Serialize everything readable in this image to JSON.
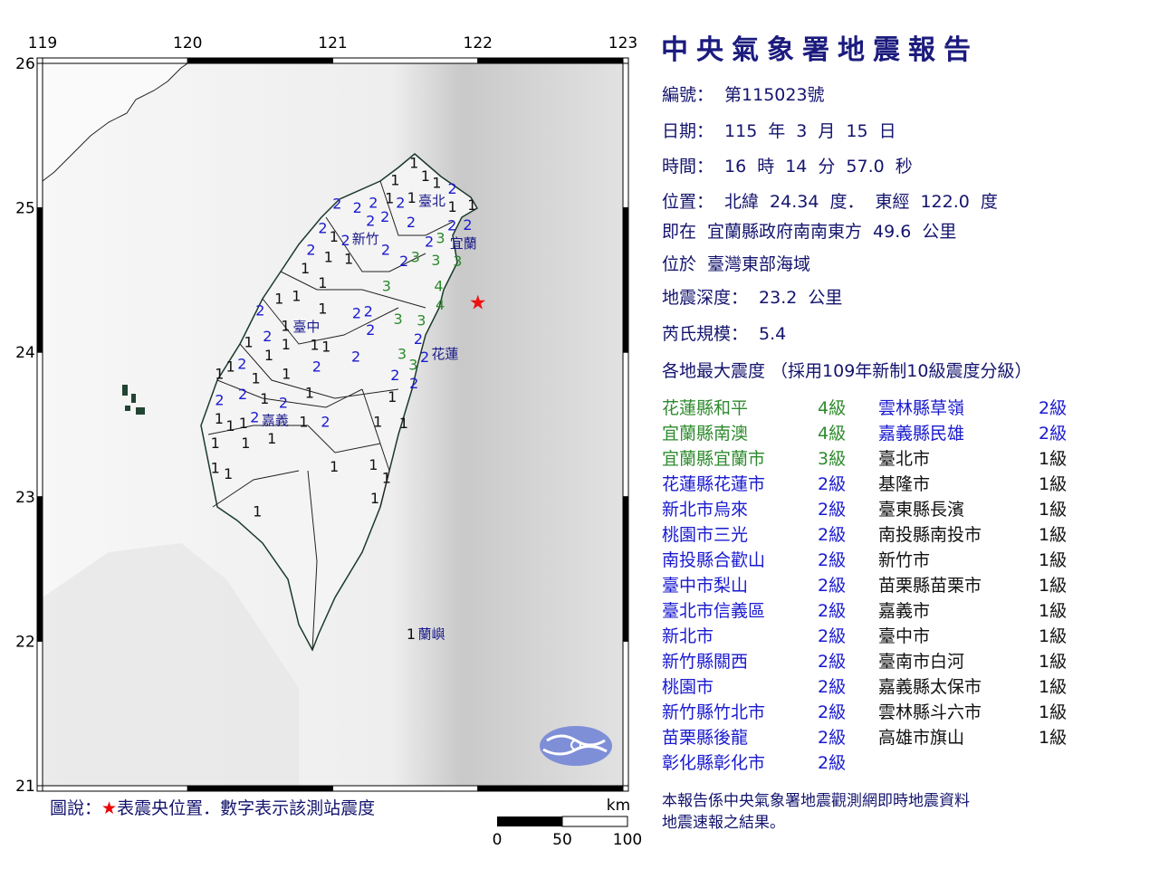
{
  "title": "中央氣象署地震報告",
  "map": {
    "lon_ticks": [
      "119",
      "120",
      "121",
      "122",
      "123"
    ],
    "lat_ticks": [
      "26",
      "25",
      "24",
      "23",
      "22",
      "21"
    ],
    "lon_range": [
      119,
      123
    ],
    "lat_range": [
      21,
      26
    ],
    "epicenter": {
      "lon": 122.0,
      "lat": 24.34,
      "color": "#ee1111",
      "icon": "star-icon"
    },
    "intensity_colors": {
      "1": "#111111",
      "2": "#1a1ad0",
      "3": "#2e8b2e",
      "4": "#2e8b2e"
    },
    "places": [
      {
        "name": "臺北",
        "lon": 121.69,
        "lat": 25.07
      },
      {
        "name": "新竹",
        "lon": 121.15,
        "lat": 24.8
      },
      {
        "name": "宜蘭",
        "lon": 121.9,
        "lat": 24.79
      },
      {
        "name": "臺中",
        "lon": 120.81,
        "lat": 24.17
      },
      {
        "name": "花蓮",
        "lon": 121.76,
        "lat": 23.99
      },
      {
        "name": "嘉義",
        "lon": 120.56,
        "lat": 23.51
      },
      {
        "name": "蘭嶼",
        "lon": 121.68,
        "lat": 22.05
      }
    ],
    "stations": [
      {
        "v": "2",
        "lon": 121.03,
        "lat": 25.03
      },
      {
        "v": "2",
        "lon": 121.17,
        "lat": 25.0
      },
      {
        "v": "2",
        "lon": 121.28,
        "lat": 25.02
      },
      {
        "v": "2",
        "lon": 121.36,
        "lat": 24.96
      },
      {
        "v": "2",
        "lon": 121.47,
        "lat": 25.05
      },
      {
        "v": "1",
        "lon": 121.56,
        "lat": 25.07
      },
      {
        "v": "1",
        "lon": 121.56,
        "lat": 25.31
      },
      {
        "v": "1",
        "lon": 121.64,
        "lat": 25.22
      },
      {
        "v": "1",
        "lon": 121.43,
        "lat": 25.15
      },
      {
        "v": "1",
        "lon": 121.41,
        "lat": 25.07
      },
      {
        "v": "2",
        "lon": 121.76,
        "lat": 25.11
      },
      {
        "v": "1",
        "lon": 121.75,
        "lat": 25.15
      },
      {
        "v": "1",
        "lon": 121.81,
        "lat": 25.0
      },
      {
        "v": "1",
        "lon": 121.96,
        "lat": 25.02
      },
      {
        "v": "2",
        "lon": 121.54,
        "lat": 24.9
      },
      {
        "v": "2",
        "lon": 121.26,
        "lat": 24.91
      },
      {
        "v": "2",
        "lon": 121.0,
        "lat": 24.86
      },
      {
        "v": "1",
        "lon": 121.03,
        "lat": 24.8
      },
      {
        "v": "2",
        "lon": 121.09,
        "lat": 24.76
      },
      {
        "v": "2",
        "lon": 121.35,
        "lat": 24.71
      },
      {
        "v": "2",
        "lon": 121.5,
        "lat": 24.63
      },
      {
        "v": "3",
        "lon": 121.56,
        "lat": 24.66
      },
      {
        "v": "2",
        "lon": 121.67,
        "lat": 24.75
      },
      {
        "v": "3",
        "lon": 121.74,
        "lat": 24.79
      },
      {
        "v": "2",
        "lon": 121.82,
        "lat": 24.87
      },
      {
        "v": "2",
        "lon": 121.93,
        "lat": 24.87
      },
      {
        "v": "3",
        "lon": 121.71,
        "lat": 24.65
      },
      {
        "v": "3",
        "lon": 121.86,
        "lat": 24.64
      },
      {
        "v": "3",
        "lon": 121.37,
        "lat": 24.46
      },
      {
        "v": "4",
        "lon": 121.73,
        "lat": 24.46
      },
      {
        "v": "4",
        "lon": 121.74,
        "lat": 24.33
      },
      {
        "v": "3",
        "lon": 121.45,
        "lat": 24.23
      },
      {
        "v": "3",
        "lon": 121.61,
        "lat": 24.19
      },
      {
        "v": "2",
        "lon": 121.59,
        "lat": 24.1
      },
      {
        "v": "3",
        "lon": 121.49,
        "lat": 23.99
      },
      {
        "v": "2",
        "lon": 121.61,
        "lat": 23.99
      },
      {
        "v": "3",
        "lon": 121.58,
        "lat": 23.9
      },
      {
        "v": "2",
        "lon": 121.43,
        "lat": 23.84
      },
      {
        "v": "2",
        "lon": 121.56,
        "lat": 23.8
      },
      {
        "v": "2",
        "lon": 120.85,
        "lat": 24.7
      },
      {
        "v": "1",
        "lon": 120.81,
        "lat": 24.59
      },
      {
        "v": "1",
        "lon": 120.97,
        "lat": 24.66
      },
      {
        "v": "1",
        "lon": 121.11,
        "lat": 24.66
      },
      {
        "v": "1",
        "lon": 120.93,
        "lat": 24.48
      },
      {
        "v": "1",
        "lon": 120.75,
        "lat": 24.39
      },
      {
        "v": "1",
        "lon": 120.63,
        "lat": 24.37
      },
      {
        "v": "1",
        "lon": 120.93,
        "lat": 24.29
      },
      {
        "v": "2",
        "lon": 120.5,
        "lat": 24.29
      },
      {
        "v": "1",
        "lon": 120.68,
        "lat": 24.17
      },
      {
        "v": "2",
        "lon": 121.18,
        "lat": 24.27
      },
      {
        "v": "2",
        "lon": 121.23,
        "lat": 24.27
      },
      {
        "v": "2",
        "lon": 121.26,
        "lat": 24.17
      },
      {
        "v": "1",
        "lon": 120.42,
        "lat": 24.07
      },
      {
        "v": "2",
        "lon": 120.55,
        "lat": 24.11
      },
      {
        "v": "1",
        "lon": 120.68,
        "lat": 24.07
      },
      {
        "v": "1",
        "lon": 120.9,
        "lat": 24.07
      },
      {
        "v": "1",
        "lon": 120.93,
        "lat": 24.04
      },
      {
        "v": "1",
        "lon": 120.56,
        "lat": 23.98
      },
      {
        "v": "2",
        "lon": 120.89,
        "lat": 23.9
      },
      {
        "v": "2",
        "lon": 121.16,
        "lat": 23.97
      },
      {
        "v": "2",
        "lon": 120.36,
        "lat": 23.92
      },
      {
        "v": "1",
        "lon": 120.25,
        "lat": 23.85
      },
      {
        "v": "1",
        "lon": 120.28,
        "lat": 23.9
      },
      {
        "v": "1",
        "lon": 120.47,
        "lat": 23.82
      },
      {
        "v": "1",
        "lon": 120.68,
        "lat": 23.85
      },
      {
        "v": "2",
        "lon": 120.22,
        "lat": 23.66
      },
      {
        "v": "2",
        "lon": 120.38,
        "lat": 23.71
      },
      {
        "v": "1",
        "lon": 120.53,
        "lat": 23.68
      },
      {
        "v": "2",
        "lon": 120.66,
        "lat": 23.61
      },
      {
        "v": "1",
        "lon": 120.84,
        "lat": 23.72
      },
      {
        "v": "1",
        "lon": 120.22,
        "lat": 23.55
      },
      {
        "v": "1",
        "lon": 120.29,
        "lat": 23.49
      },
      {
        "v": "1",
        "lon": 120.42,
        "lat": 23.51
      },
      {
        "v": "2",
        "lon": 120.47,
        "lat": 23.55
      },
      {
        "v": "1",
        "lon": 120.58,
        "lat": 23.46
      },
      {
        "v": "1",
        "lon": 120.8,
        "lat": 23.52
      },
      {
        "v": "2",
        "lon": 120.95,
        "lat": 23.52
      },
      {
        "v": "1",
        "lon": 120.19,
        "lat": 23.37
      },
      {
        "v": "1",
        "lon": 120.4,
        "lat": 23.37
      },
      {
        "v": "1",
        "lon": 120.19,
        "lat": 23.2
      },
      {
        "v": "1",
        "lon": 120.28,
        "lat": 23.16
      },
      {
        "v": "1",
        "lon": 120.48,
        "lat": 22.9
      },
      {
        "v": "1",
        "lon": 121.41,
        "lat": 23.69
      },
      {
        "v": "1",
        "lon": 121.31,
        "lat": 23.52
      },
      {
        "v": "1",
        "lon": 121.49,
        "lat": 23.51
      },
      {
        "v": "1",
        "lon": 121.01,
        "lat": 23.21
      },
      {
        "v": "1",
        "lon": 121.28,
        "lat": 23.22
      },
      {
        "v": "1",
        "lon": 121.37,
        "lat": 23.13
      },
      {
        "v": "1",
        "lon": 121.29,
        "lat": 22.99
      },
      {
        "v": "1",
        "lon": 121.54,
        "lat": 22.05
      }
    ]
  },
  "legend": {
    "prefix": "圖說：",
    "star": "★",
    "text": "表震央位置．數字表示該測站震度"
  },
  "scale": {
    "unit": "km",
    "labels": [
      "0",
      "50",
      "100"
    ]
  },
  "info": {
    "number": {
      "label": "編號：",
      "value": "第115023號"
    },
    "date": {
      "label": "日期：",
      "year": "115",
      "y_unit": "年",
      "month": "3",
      "m_unit": "月",
      "day": "15",
      "d_unit": "日"
    },
    "time": {
      "label": "時間：",
      "hour": "16",
      "h_unit": "時",
      "minute": "14",
      "min_unit": "分",
      "second": "57.0",
      "s_unit": "秒"
    },
    "location": {
      "label": "位置：",
      "lat_label": "北緯",
      "lat": "24.34",
      "lat_unit": "度．",
      "lon_label": "東經",
      "lon": "122.0",
      "lon_unit": "度"
    },
    "relative": {
      "prefix": "即在",
      "ref": "宜蘭縣政府南南東方",
      "dist": "49.6",
      "unit": "公里"
    },
    "region": {
      "prefix": "位於",
      "name": "臺灣東部海域"
    },
    "depth": {
      "label": "地震深度：",
      "value": "23.2",
      "unit": "公里"
    },
    "magnitude": {
      "label": "芮氏規模：",
      "value": "5.4"
    },
    "intensity_heading": "各地最大震度 （採用109年新制10級震度分級）"
  },
  "intensities_left": [
    {
      "name": "花蓮縣和平",
      "level": "4級",
      "c": "4"
    },
    {
      "name": "宜蘭縣南澳",
      "level": "4級",
      "c": "4"
    },
    {
      "name": "宜蘭縣宜蘭市",
      "level": "3級",
      "c": "3"
    },
    {
      "name": "花蓮縣花蓮市",
      "level": "2級",
      "c": "2"
    },
    {
      "name": "新北市烏來",
      "level": "2級",
      "c": "2"
    },
    {
      "name": "桃園市三光",
      "level": "2級",
      "c": "2"
    },
    {
      "name": "南投縣合歡山",
      "level": "2級",
      "c": "2"
    },
    {
      "name": "臺中市梨山",
      "level": "2級",
      "c": "2"
    },
    {
      "name": "臺北市信義區",
      "level": "2級",
      "c": "2"
    },
    {
      "name": "新北市",
      "level": "2級",
      "c": "2"
    },
    {
      "name": "新竹縣關西",
      "level": "2級",
      "c": "2"
    },
    {
      "name": "桃園市",
      "level": "2級",
      "c": "2"
    },
    {
      "name": "新竹縣竹北市",
      "level": "2級",
      "c": "2"
    },
    {
      "name": "苗栗縣後龍",
      "level": "2級",
      "c": "2"
    },
    {
      "name": "彰化縣彰化市",
      "level": "2級",
      "c": "2"
    }
  ],
  "intensities_right": [
    {
      "name": "雲林縣草嶺",
      "level": "2級",
      "c": "2"
    },
    {
      "name": "嘉義縣民雄",
      "level": "2級",
      "c": "2"
    },
    {
      "name": "臺北市",
      "level": "1級",
      "c": "1"
    },
    {
      "name": "基隆市",
      "level": "1級",
      "c": "1"
    },
    {
      "name": "臺東縣長濱",
      "level": "1級",
      "c": "1"
    },
    {
      "name": "南投縣南投市",
      "level": "1級",
      "c": "1"
    },
    {
      "name": "新竹市",
      "level": "1級",
      "c": "1"
    },
    {
      "name": "苗栗縣苗栗市",
      "level": "1級",
      "c": "1"
    },
    {
      "name": "嘉義市",
      "level": "1級",
      "c": "1"
    },
    {
      "name": "臺中市",
      "level": "1級",
      "c": "1"
    },
    {
      "name": "臺南市白河",
      "level": "1級",
      "c": "1"
    },
    {
      "name": "嘉義縣太保市",
      "level": "1級",
      "c": "1"
    },
    {
      "name": "雲林縣斗六市",
      "level": "1級",
      "c": "1"
    },
    {
      "name": "高雄市旗山",
      "level": "1級",
      "c": "1"
    }
  ],
  "note": {
    "line1": "本報告係中央氣象署地震觀測網即時地震資料",
    "line2": "地震速報之結果。"
  }
}
